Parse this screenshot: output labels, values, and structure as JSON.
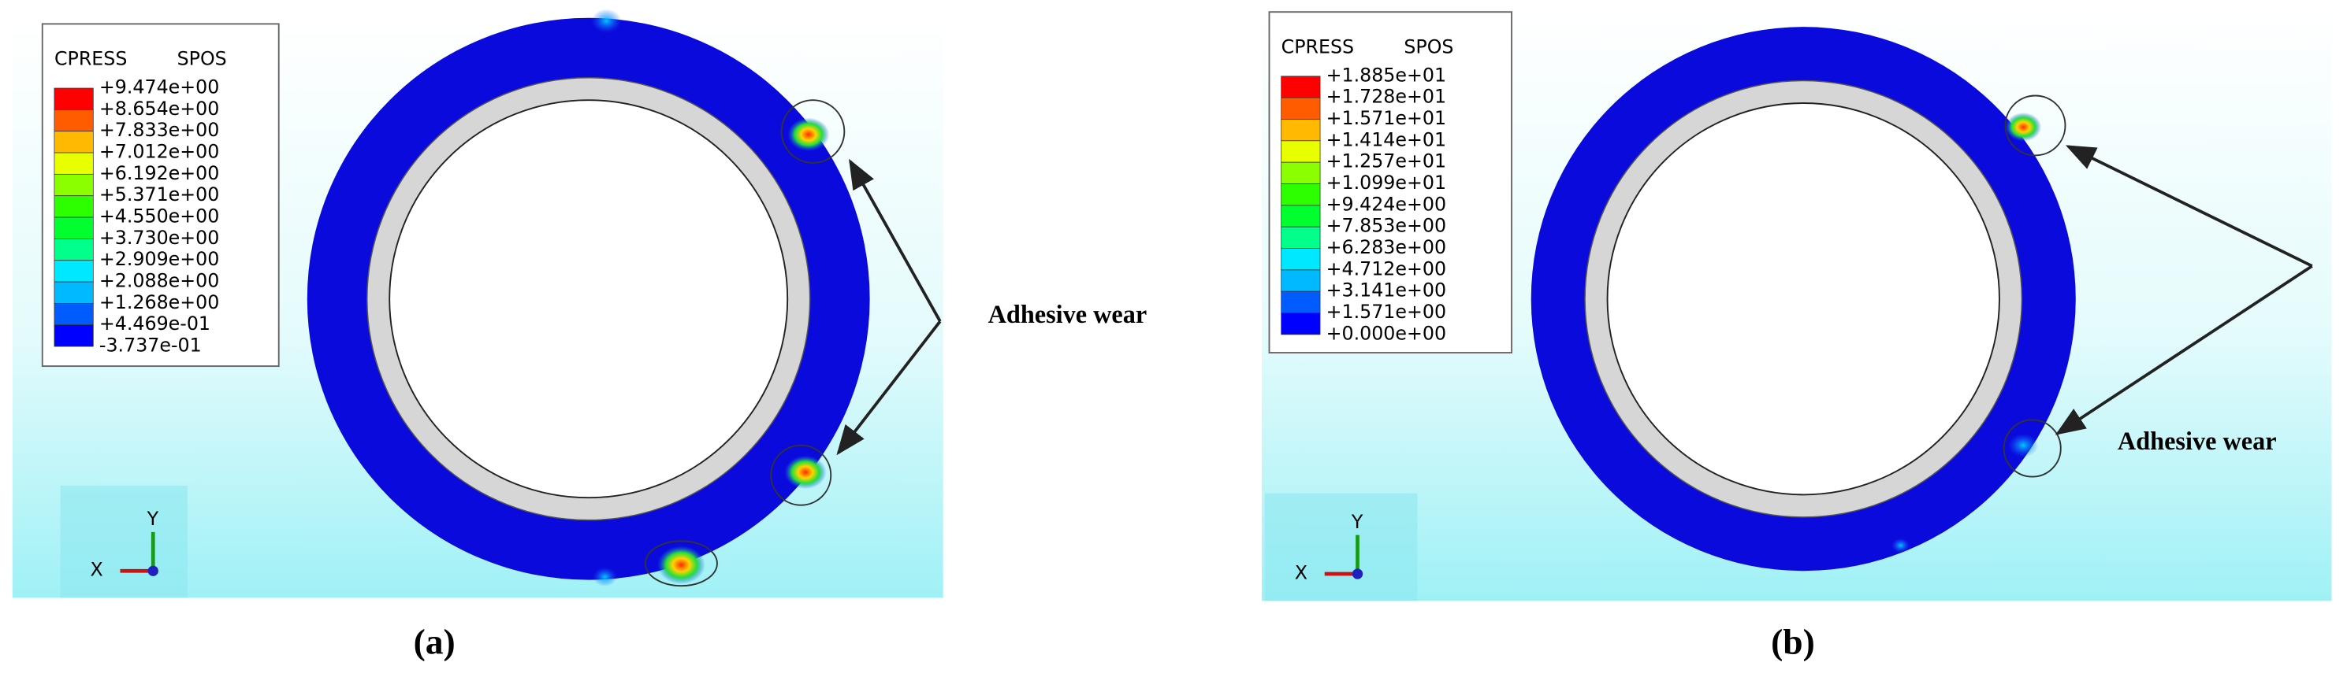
{
  "panels": [
    {
      "caption": "(a)",
      "legend": {
        "variable": "CPRESS",
        "output": "SPOS",
        "labels": [
          "+9.474e+00",
          "+8.654e+00",
          "+7.833e+00",
          "+7.012e+00",
          "+6.192e+00",
          "+5.371e+00",
          "+4.550e+00",
          "+3.730e+00",
          "+2.909e+00",
          "+2.088e+00",
          "+1.268e+00",
          "+4.469e-01",
          "-3.737e-01"
        ],
        "colors": [
          "#ff0000",
          "#ff5c00",
          "#ffb900",
          "#e8ff00",
          "#8bff00",
          "#2eff00",
          "#00ff2e",
          "#00ff8b",
          "#00e8ff",
          "#00b9ff",
          "#005cff",
          "#0000ff"
        ]
      },
      "annotation": "Adhesive wear",
      "triad": {
        "y": "Y",
        "x": "X"
      }
    },
    {
      "caption": "(b)",
      "legend": {
        "variable": "CPRESS",
        "output": "SPOS",
        "labels": [
          "+1.885e+01",
          "+1.728e+01",
          "+1.571e+01",
          "+1.414e+01",
          "+1.257e+01",
          "+1.099e+01",
          "+9.424e+00",
          "+7.853e+00",
          "+6.283e+00",
          "+4.712e+00",
          "+3.141e+00",
          "+1.571e+00",
          "+0.000e+00"
        ],
        "colors": [
          "#ff0000",
          "#ff5c00",
          "#ffb900",
          "#e8ff00",
          "#8bff00",
          "#2eff00",
          "#00ff2e",
          "#00ff8b",
          "#00e8ff",
          "#00b9ff",
          "#005cff",
          "#0000ff"
        ]
      },
      "annotation": "Adhesive wear",
      "triad": {
        "y": "Y",
        "x": "X"
      }
    }
  ]
}
